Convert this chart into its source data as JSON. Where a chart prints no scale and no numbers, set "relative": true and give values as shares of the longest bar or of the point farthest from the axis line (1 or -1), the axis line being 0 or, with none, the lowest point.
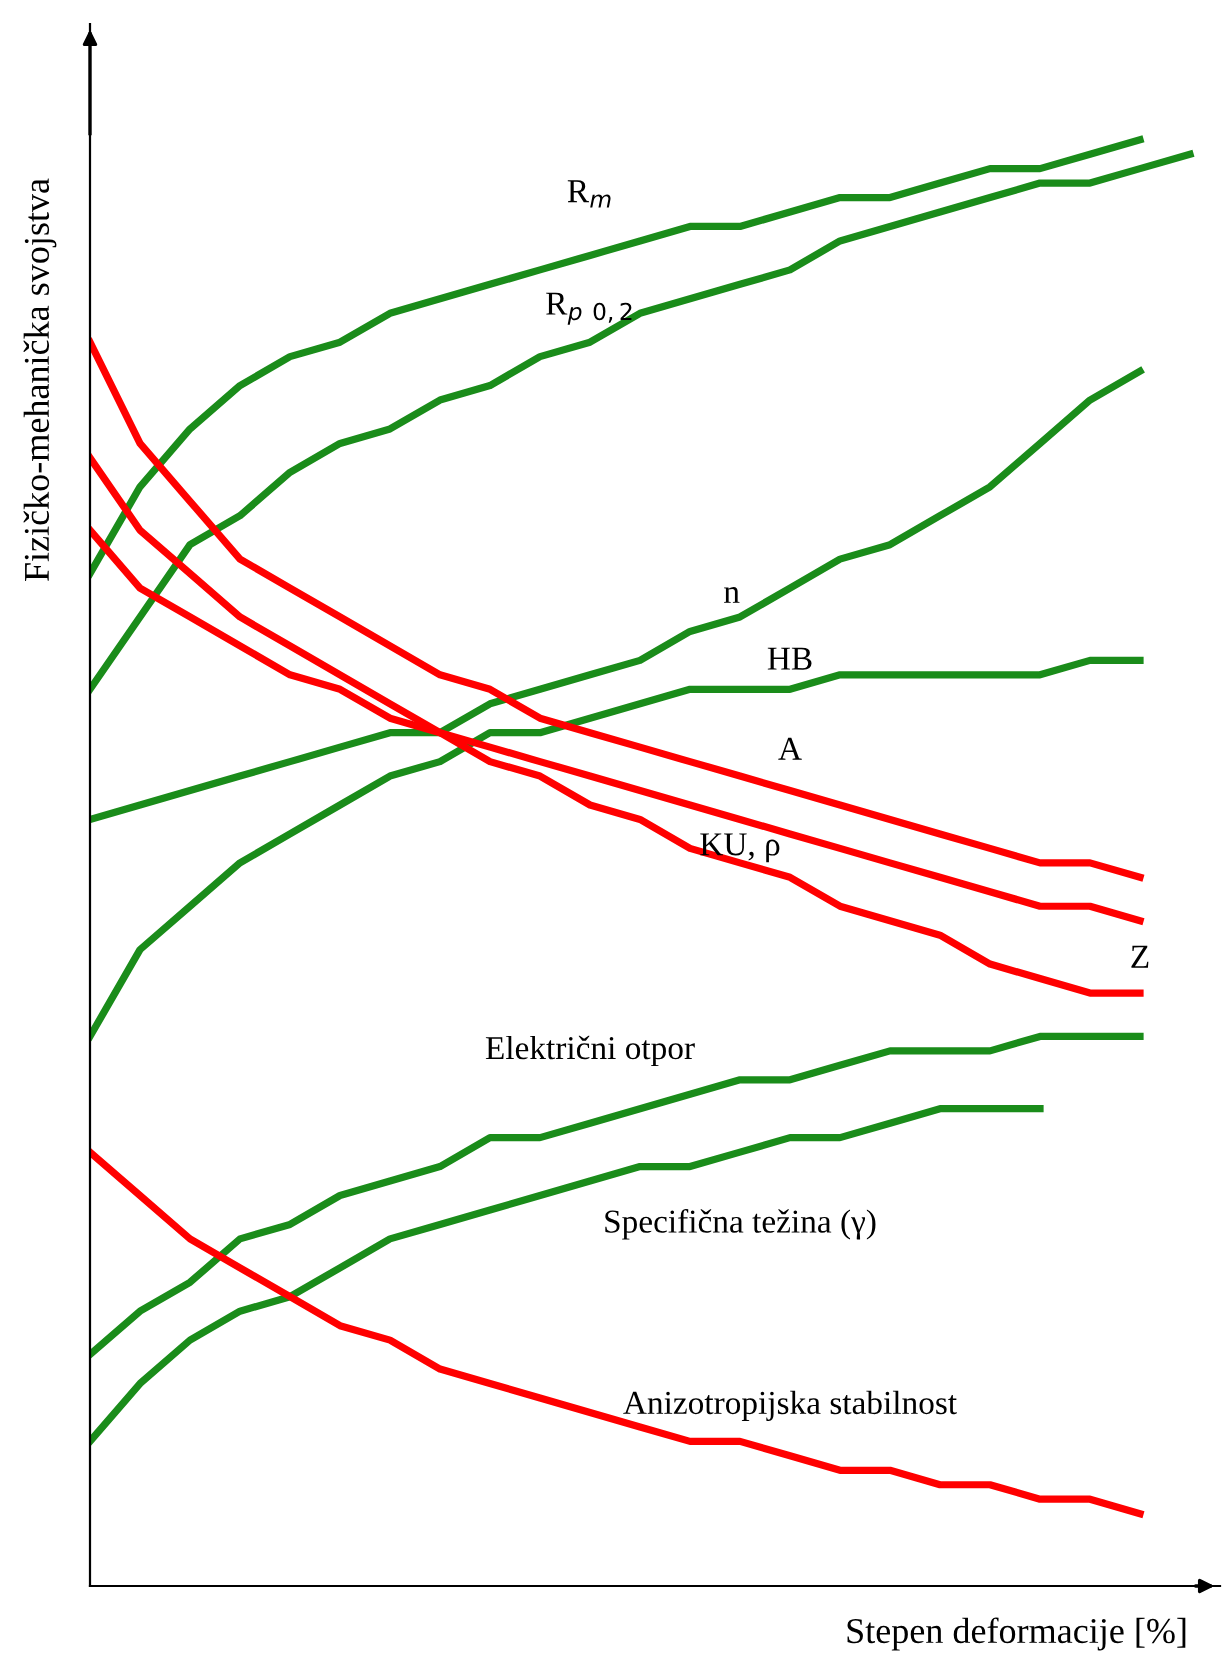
{
  "chart_data": {
    "type": "line",
    "relative": true,
    "xlabel": "Stepen deformacije [%]",
    "ylabel": "Fizičko-mehanička svojstva",
    "categories": [
      null,
      null,
      null,
      null,
      null,
      null,
      null,
      null,
      null,
      null,
      null,
      null,
      null,
      null,
      null,
      null,
      null,
      null,
      null,
      null,
      null,
      null,
      null
    ],
    "grid": false,
    "legend": false,
    "marker": "none",
    "line_style": "solid",
    "series": [
      {
        "name": "R$_{m}$",
        "color": "#1a8c1a",
        "values": [
          0.7,
          0.76,
          0.8,
          0.83,
          0.85,
          0.86,
          0.88,
          0.89,
          0.9,
          0.91,
          0.92,
          0.93,
          0.94,
          0.94,
          0.95,
          0.96,
          0.96,
          0.97,
          0.98,
          0.98,
          0.99,
          1.0,
          null
        ]
      },
      {
        "name": "R$_{p}$ $_{0,2}$",
        "color": "#1a8c1a",
        "values": [
          0.62,
          0.67,
          0.72,
          0.74,
          0.77,
          0.79,
          0.8,
          0.82,
          0.83,
          0.85,
          0.86,
          0.88,
          0.89,
          0.9,
          0.91,
          0.93,
          0.94,
          0.95,
          0.96,
          0.97,
          0.97,
          0.98,
          0.99
        ]
      },
      {
        "name": "n",
        "color": "#1a8c1a",
        "values": [
          0.53,
          0.54,
          0.55,
          0.56,
          0.57,
          0.58,
          0.59,
          0.59,
          0.61,
          0.62,
          0.63,
          0.64,
          0.66,
          0.67,
          0.69,
          0.71,
          0.72,
          0.74,
          0.76,
          0.79,
          0.82,
          0.84,
          null
        ]
      },
      {
        "name": "HB",
        "color": "#1a8c1a",
        "values": [
          0.38,
          0.44,
          0.47,
          0.5,
          0.52,
          0.54,
          0.56,
          0.57,
          0.59,
          0.59,
          0.6,
          0.61,
          0.62,
          0.62,
          0.62,
          0.63,
          0.63,
          0.63,
          0.63,
          0.63,
          0.64,
          0.64,
          null
        ]
      },
      {
        "name": "A",
        "color": "#ff0000",
        "values": [
          0.86,
          0.79,
          0.75,
          0.71,
          0.69,
          0.67,
          0.65,
          0.63,
          0.62,
          0.6,
          0.59,
          0.58,
          0.57,
          0.56,
          0.55,
          0.54,
          0.53,
          0.52,
          0.51,
          0.5,
          0.5,
          0.49,
          null
        ]
      },
      {
        "name": "KU, ρ",
        "color": "#ff0000",
        "values": [
          0.73,
          0.69,
          0.67,
          0.65,
          0.63,
          0.62,
          0.6,
          0.59,
          0.58,
          0.57,
          0.56,
          0.55,
          0.54,
          0.53,
          0.52,
          0.51,
          0.5,
          0.49,
          0.48,
          0.47,
          0.47,
          0.46,
          null
        ]
      },
      {
        "name": "Z",
        "color": "#ff0000",
        "values": [
          0.78,
          0.73,
          0.7,
          0.67,
          0.65,
          0.63,
          0.61,
          0.59,
          0.57,
          0.56,
          0.54,
          0.53,
          0.51,
          0.5,
          0.49,
          0.47,
          0.46,
          0.45,
          0.43,
          0.42,
          0.41,
          0.41,
          null
        ]
      },
      {
        "name": "Električni otpor",
        "color": "#1a8c1a",
        "values": [
          0.16,
          0.19,
          0.21,
          0.24,
          0.25,
          0.27,
          0.28,
          0.29,
          0.31,
          0.31,
          0.32,
          0.33,
          0.34,
          0.35,
          0.35,
          0.36,
          0.37,
          0.37,
          0.37,
          0.38,
          0.38,
          0.38,
          null
        ]
      },
      {
        "name": "Specifična težina (γ)",
        "color": "#1a8c1a",
        "values": [
          0.1,
          0.14,
          0.17,
          0.19,
          0.2,
          0.22,
          0.24,
          0.25,
          0.26,
          0.27,
          0.28,
          0.29,
          0.29,
          0.3,
          0.31,
          0.31,
          0.32,
          0.33,
          0.33,
          0.33,
          null,
          null,
          null
        ]
      },
      {
        "name": "Anizotropijska stabilnost",
        "color": "#ff0000",
        "values": [
          0.3,
          0.27,
          0.24,
          0.22,
          0.2,
          0.18,
          0.17,
          0.15,
          0.14,
          0.13,
          0.12,
          0.11,
          0.1,
          0.1,
          0.09,
          0.08,
          0.08,
          0.07,
          0.07,
          0.06,
          0.06,
          0.05,
          null
        ]
      }
    ]
  }
}
